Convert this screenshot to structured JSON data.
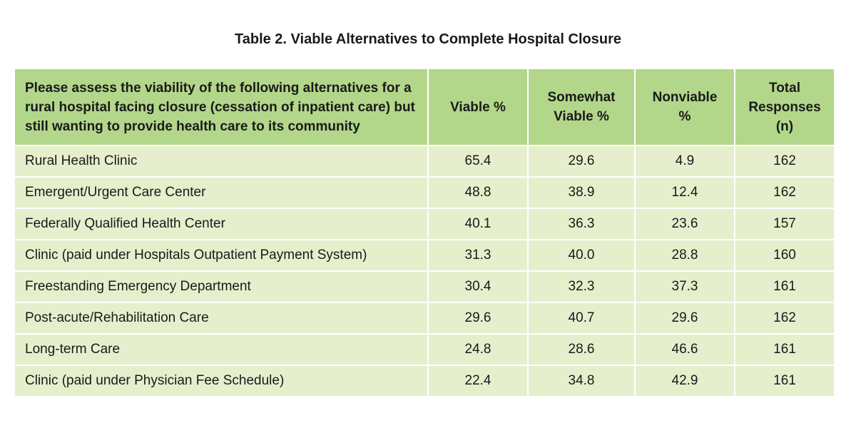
{
  "title": "Table 2. Viable Alternatives to Complete Hospital Closure",
  "headers": [
    "Please assess the viability of the following alternatives for a rural hospital facing closure (cessation of inpatient care) but still wanting to provide health care to its community",
    "Viable %",
    "Somewhat Viable %",
    "Nonviable %",
    "Total Responses (n)"
  ],
  "rows": [
    [
      "Rural Health Clinic",
      "65.4",
      "29.6",
      "4.9",
      "162"
    ],
    [
      "Emergent/Urgent Care Center",
      "48.8",
      "38.9",
      "12.4",
      "162"
    ],
    [
      "Federally Qualified Health Center",
      "40.1",
      "36.3",
      "23.6",
      "157"
    ],
    [
      "Clinic (paid under Hospitals Outpatient Payment System)",
      "31.3",
      "40.0",
      "28.8",
      "160"
    ],
    [
      "Freestanding Emergency Department",
      "30.4",
      "32.3",
      "37.3",
      "161"
    ],
    [
      "Post-acute/Rehabilitation Care",
      "29.6",
      "40.7",
      "29.6",
      "162"
    ],
    [
      "Long-term Care",
      "24.8",
      "28.6",
      "46.6",
      "161"
    ],
    [
      "Clinic (paid under Physician Fee Schedule)",
      "22.4",
      "34.8",
      "42.9",
      "161"
    ]
  ],
  "colors": {
    "header": "#b3d78a",
    "row": "#e5efcc"
  }
}
